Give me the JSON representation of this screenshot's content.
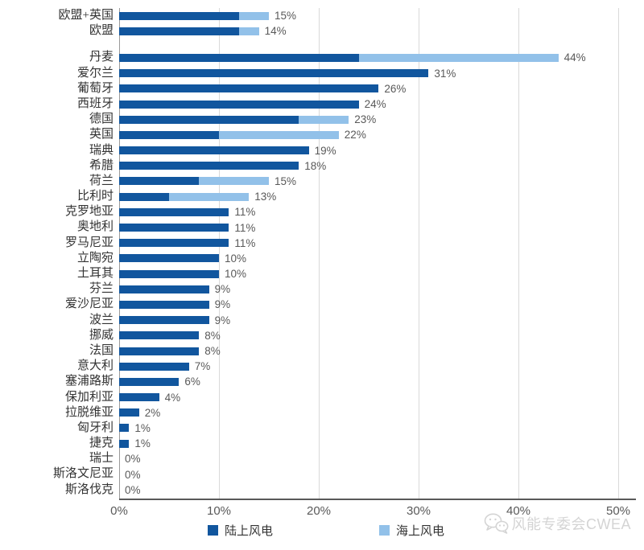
{
  "watermark": {
    "text": "风能专委会CWEA"
  },
  "legend": {
    "onshore_label": "陆上风电",
    "offshore_label": "海上风电"
  },
  "colors": {
    "onshore": "#11569e",
    "offshore": "#92c1e9",
    "gridline": "#d9d9d9",
    "axis": "#595959",
    "value_label": "#595959",
    "watermark": "#d4d4d4"
  },
  "chart_data": {
    "type": "bar",
    "orientation": "horizontal",
    "stacked": true,
    "title": "",
    "xlabel": "",
    "ylabel": "",
    "xlim": [
      0,
      50
    ],
    "grid": true,
    "x_ticks": [
      "0%",
      "10%",
      "20%",
      "30%",
      "40%",
      "50%"
    ],
    "x_tick_values": [
      0,
      10,
      20,
      30,
      40,
      50
    ],
    "legend_position": "bottom",
    "series_names": [
      "陆上风电",
      "海上风电"
    ],
    "rows": [
      {
        "label": "欧盟+英国",
        "onshore": 12,
        "offshore": 3,
        "total_label": "15%"
      },
      {
        "label": "欧盟",
        "onshore": 12,
        "offshore": 2,
        "total_label": "14%",
        "gap_after": true
      },
      {
        "label": "丹麦",
        "onshore": 24,
        "offshore": 20,
        "total_label": "44%"
      },
      {
        "label": "爱尔兰",
        "onshore": 31,
        "offshore": 0,
        "total_label": "31%"
      },
      {
        "label": "葡萄牙",
        "onshore": 26,
        "offshore": 0,
        "total_label": "26%"
      },
      {
        "label": "西班牙",
        "onshore": 24,
        "offshore": 0,
        "total_label": "24%"
      },
      {
        "label": "德国",
        "onshore": 18,
        "offshore": 5,
        "total_label": "23%"
      },
      {
        "label": "英国",
        "onshore": 10,
        "offshore": 12,
        "total_label": "22%"
      },
      {
        "label": "瑞典",
        "onshore": 19,
        "offshore": 0,
        "total_label": "19%"
      },
      {
        "label": "希腊",
        "onshore": 18,
        "offshore": 0,
        "total_label": "18%"
      },
      {
        "label": "荷兰",
        "onshore": 8,
        "offshore": 7,
        "total_label": "15%"
      },
      {
        "label": "比利时",
        "onshore": 5,
        "offshore": 8,
        "total_label": "13%"
      },
      {
        "label": "克罗地亚",
        "onshore": 11,
        "offshore": 0,
        "total_label": "11%"
      },
      {
        "label": "奥地利",
        "onshore": 11,
        "offshore": 0,
        "total_label": "11%"
      },
      {
        "label": "罗马尼亚",
        "onshore": 11,
        "offshore": 0,
        "total_label": "11%"
      },
      {
        "label": "立陶宛",
        "onshore": 10,
        "offshore": 0,
        "total_label": "10%"
      },
      {
        "label": "土耳其",
        "onshore": 10,
        "offshore": 0,
        "total_label": "10%"
      },
      {
        "label": "芬兰",
        "onshore": 9,
        "offshore": 0,
        "total_label": "9%"
      },
      {
        "label": "爱沙尼亚",
        "onshore": 9,
        "offshore": 0,
        "total_label": "9%"
      },
      {
        "label": "波兰",
        "onshore": 9,
        "offshore": 0,
        "total_label": "9%"
      },
      {
        "label": "挪威",
        "onshore": 8,
        "offshore": 0,
        "total_label": "8%"
      },
      {
        "label": "法国",
        "onshore": 8,
        "offshore": 0,
        "total_label": "8%"
      },
      {
        "label": "意大利",
        "onshore": 7,
        "offshore": 0,
        "total_label": "7%"
      },
      {
        "label": "塞浦路斯",
        "onshore": 6,
        "offshore": 0,
        "total_label": "6%"
      },
      {
        "label": "保加利亚",
        "onshore": 4,
        "offshore": 0,
        "total_label": "4%"
      },
      {
        "label": "拉脱维亚",
        "onshore": 2,
        "offshore": 0,
        "total_label": "2%"
      },
      {
        "label": "匈牙利",
        "onshore": 1,
        "offshore": 0,
        "total_label": "1%"
      },
      {
        "label": "捷克",
        "onshore": 1,
        "offshore": 0,
        "total_label": "1%"
      },
      {
        "label": "瑞士",
        "onshore": 0,
        "offshore": 0,
        "total_label": "0%"
      },
      {
        "label": "斯洛文尼亚",
        "onshore": 0,
        "offshore": 0,
        "total_label": "0%"
      },
      {
        "label": "斯洛伐克",
        "onshore": 0,
        "offshore": 0,
        "total_label": "0%"
      }
    ]
  }
}
